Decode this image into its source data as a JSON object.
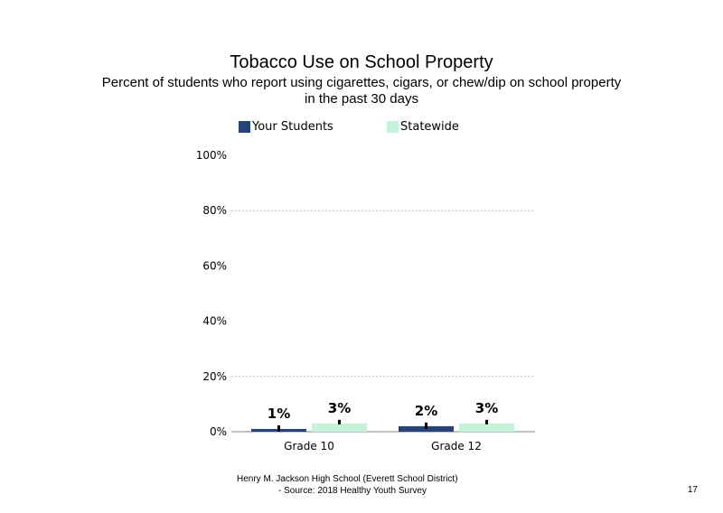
{
  "title": "Tobacco Use on School Property",
  "subtitle_line1": "Percent of students  who report using cigarettes, cigars, or chew/dip on school property",
  "subtitle_line2": "in the past 30 days",
  "legend": [
    {
      "label": "Your Students",
      "color": "#264478"
    },
    {
      "label": "Statewide",
      "color": "#c6f2d9"
    }
  ],
  "footer_line1": "Henry M.  Jackson High  School (Everett School District)",
  "footer_line2": "- Source: 2018 Healthy  Youth Survey",
  "page_number": "17",
  "chart_data": {
    "type": "bar",
    "title": "Tobacco Use on School Property",
    "categories": [
      "Grade 10",
      "Grade 12"
    ],
    "series": [
      {
        "name": "Your Students",
        "values": [
          1,
          2
        ],
        "labels": [
          "1%",
          "2%"
        ],
        "color": "#264478"
      },
      {
        "name": "Statewide",
        "values": [
          3,
          3
        ],
        "labels": [
          "3%",
          "3%"
        ],
        "color": "#c6f2d9"
      }
    ],
    "ylim": [
      0,
      100
    ],
    "yticks": [
      0,
      20,
      40,
      60,
      80,
      100
    ],
    "ytick_labels": [
      "0%",
      "20%",
      "40%",
      "60%",
      "80%",
      "100%"
    ],
    "error_bars": true,
    "grid": "dotted horizontal",
    "legend_position": "top"
  }
}
